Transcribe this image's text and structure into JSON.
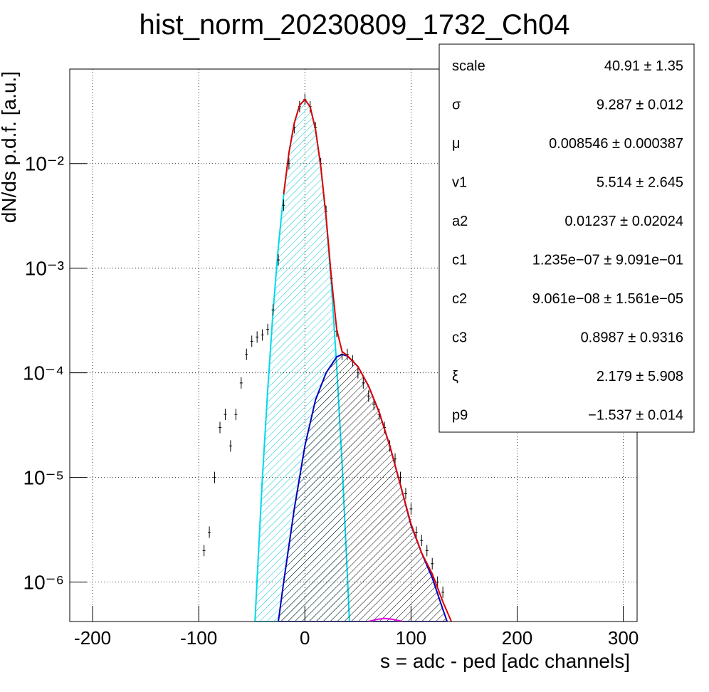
{
  "chart_data": {
    "type": "scatter",
    "title": "hist_norm_20230809_1732_Ch04",
    "x_label": "s = adc - ped [adc channels]",
    "y_label": "dN/ds p.d.f. [a.u.]",
    "xlim": [
      -221.5,
      313
    ],
    "ylim": [
      4.2e-07,
      0.08
    ],
    "log_y": true,
    "grid": true,
    "xticks": [
      -200,
      -100,
      0,
      100,
      200,
      300
    ],
    "yticks": [
      {
        "value": 1e-06,
        "label": "10⁻⁶"
      },
      {
        "value": 1e-05,
        "label": "10⁻⁵"
      },
      {
        "value": 0.0001,
        "label": "10⁻⁴"
      },
      {
        "value": 0.001,
        "label": "10⁻³"
      },
      {
        "value": 0.01,
        "label": "10⁻²"
      }
    ],
    "series": [
      {
        "style": "points",
        "color": "#000000",
        "x": [
          -95,
          -90,
          -85,
          -80,
          -75,
          -70,
          -65,
          -60,
          -55,
          -50,
          -45,
          -40,
          -35,
          -30,
          -25,
          -20,
          -15,
          -10,
          -5,
          0,
          5,
          10,
          15,
          20,
          25,
          30,
          35,
          40,
          45,
          50,
          55,
          60,
          65,
          70,
          75,
          80,
          85,
          90,
          95,
          100,
          105,
          110,
          115,
          120,
          125,
          130
        ],
        "values": [
          2e-06,
          3e-06,
          1e-05,
          3e-05,
          4e-05,
          2e-05,
          4e-05,
          8e-05,
          0.00015,
          0.0002,
          0.00022,
          0.00023,
          0.00026,
          0.0004,
          0.0012,
          0.004,
          0.01,
          0.022,
          0.035,
          0.041,
          0.035,
          0.022,
          0.01,
          0.0035,
          0.0008,
          0.00025,
          0.00015,
          0.00015,
          0.00013,
          0.0001,
          8e-05,
          6e-05,
          5e-05,
          4e-05,
          3e-05,
          2e-05,
          1.5e-05,
          1e-05,
          7e-06,
          5e-06,
          3e-06,
          2.5e-06,
          2e-06,
          1.5e-06,
          1e-06,
          8e-07
        ]
      },
      {
        "style": "area",
        "color": "#00d8e8",
        "fill": "#00c8d8",
        "x": [
          -47,
          -45,
          -40,
          -35,
          -30,
          -25,
          -20,
          -15,
          -10,
          -5,
          0,
          5,
          10,
          15,
          20,
          25,
          30,
          35,
          40,
          42
        ],
        "values": [
          4.2e-07,
          1.07e-06,
          9.9e-06,
          6.9e-05,
          0.00038,
          0.0016,
          0.0051,
          0.0127,
          0.0244,
          0.036,
          0.041,
          0.0348,
          0.0213,
          0.0094,
          0.003,
          0.00069,
          0.000115,
          1.38e-05,
          1.2e-06,
          4.2e-07
        ]
      },
      {
        "style": "area",
        "color": "#0000c0",
        "fill": "#000000",
        "x": [
          -25,
          -20,
          -10,
          0,
          10,
          20,
          30,
          35,
          40,
          50,
          60,
          70,
          80,
          90,
          100,
          110,
          120,
          130,
          134
        ],
        "values": [
          4.2e-07,
          1e-06,
          5e-06,
          2e-05,
          5.5e-05,
          0.0001,
          0.000142,
          0.00015,
          0.000145,
          0.000115,
          7.5e-05,
          4.2e-05,
          2e-05,
          8.5e-06,
          3.5e-06,
          1.9e-06,
          1.1e-06,
          5.5e-07,
          4.2e-07
        ]
      },
      {
        "style": "line",
        "color": "#e00000",
        "x": [
          -20,
          -15,
          -10,
          -5,
          0,
          5,
          10,
          15,
          20,
          25,
          30,
          35,
          40,
          50,
          60,
          70,
          80,
          90,
          100,
          110,
          120,
          130,
          138
        ],
        "values": [
          0.0051,
          0.0127,
          0.0244,
          0.036,
          0.041,
          0.0348,
          0.0213,
          0.0094,
          0.0031,
          0.0008,
          0.00026,
          0.00016,
          0.000146,
          0.000115,
          7.5e-05,
          4.2e-05,
          2e-05,
          8.5e-06,
          3.6e-06,
          1.9e-06,
          1.2e-06,
          6.5e-07,
          4.2e-07
        ]
      },
      {
        "style": "line",
        "color": "#e000e0",
        "x": [
          60,
          68,
          75,
          83,
          92
        ],
        "values": [
          4.2e-07,
          4.4e-07,
          4.5e-07,
          4.4e-07,
          4.2e-07
        ]
      }
    ],
    "stats": [
      {
        "name": "scale",
        "value": "40.91 ± 1.35"
      },
      {
        "name": "σ",
        "value": "9.287 ± 0.012"
      },
      {
        "name": "μ",
        "value": "0.008546 ± 0.000387"
      },
      {
        "name": "v1",
        "value": "5.514 ± 2.645"
      },
      {
        "name": "a2",
        "value": "0.01237 ± 0.02024"
      },
      {
        "name": "c1",
        "value": "1.235e−07 ± 9.091e−01"
      },
      {
        "name": "c2",
        "value": "9.061e−08 ± 1.561e−05"
      },
      {
        "name": "c3",
        "value": "0.8987 ± 0.9316"
      },
      {
        "name": "ξ",
        "value": "2.179 ± 5.908"
      },
      {
        "name": "p9",
        "value": "−1.537 ± 0.014"
      }
    ]
  }
}
